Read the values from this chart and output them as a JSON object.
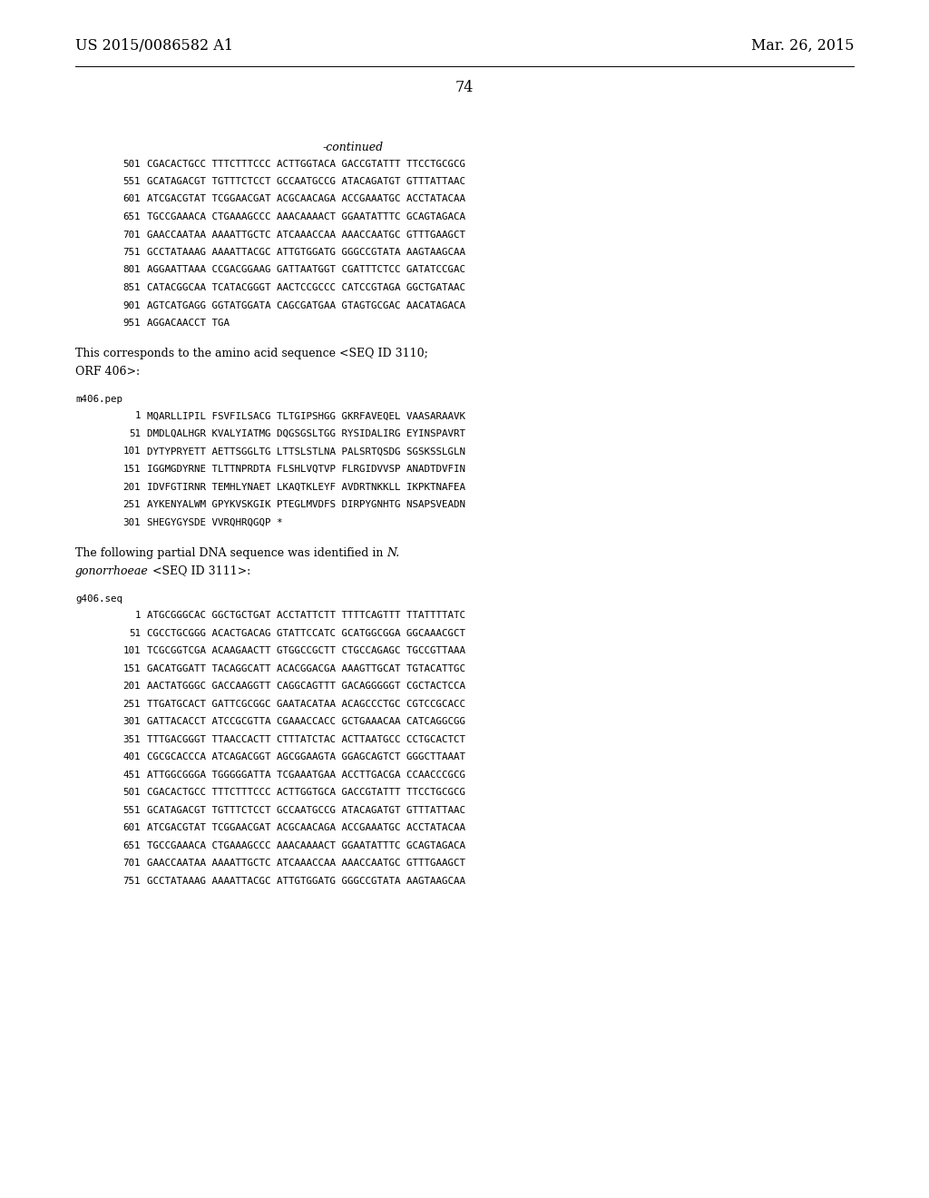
{
  "background_color": "#ffffff",
  "header_left": "US 2015/0086582 A1",
  "header_right": "Mar. 26, 2015",
  "page_number": "74",
  "font_size_header": 11.5,
  "font_size_body": 9.0,
  "font_size_mono": 7.8,
  "font_size_label": 7.8,
  "content": [
    {
      "type": "continued",
      "text": "-continued"
    },
    {
      "type": "seq",
      "num": "501",
      "text": "CGACACTGCC TTTCTTTCCC ACTTGGTACA GACCGTATTT TTCCTGCGCG"
    },
    {
      "type": "seq",
      "num": "551",
      "text": "GCATAGACGT TGTTTCTCCT GCCAATGCCG ATACAGATGT GTTTATTAAC"
    },
    {
      "type": "seq",
      "num": "601",
      "text": "ATCGACGTAT TCGGAACGAT ACGCAACAGA ACCGAAATGC ACCTATACAA"
    },
    {
      "type": "seq",
      "num": "651",
      "text": "TGCCGAAACA CTGAAAGCCC AAACAAAACT GGAATATTTC GCAGTAGACA"
    },
    {
      "type": "seq",
      "num": "701",
      "text": "GAACCAATAA AAAATTGCTC ATCAAACCAA AAACCAATGC GTTTGAAGCT"
    },
    {
      "type": "seq",
      "num": "751",
      "text": "GCCTATAAAG AAAATTACGC ATTGTGGATG GGGCCGTATA AAGTAAGCAA"
    },
    {
      "type": "seq",
      "num": "801",
      "text": "AGGAATTAAA CCGACGGAAG GATTAATGGT CGATTTCTCC GATATCCGAC"
    },
    {
      "type": "seq",
      "num": "851",
      "text": "CATACGGCAA TCATACGGGT AACTCCGCCC CATCCGTAGA GGCTGATAAC"
    },
    {
      "type": "seq",
      "num": "901",
      "text": "AGTCATGAGG GGTATGGATA CAGCGATGAA GTAGTGCGAC AACATAGACA"
    },
    {
      "type": "seq",
      "num": "951",
      "text": "AGGACAACCT TGA"
    },
    {
      "type": "blank"
    },
    {
      "type": "body",
      "text": "This corresponds to the amino acid sequence <SEQ ID 3110;"
    },
    {
      "type": "body",
      "text": "ORF 406>:"
    },
    {
      "type": "blank"
    },
    {
      "type": "label",
      "text": "m406.pep"
    },
    {
      "type": "seq_ul",
      "num": "1",
      "text": "MQARLLIPIL FSVFILSACG TLTGIPSHGG GKRFAVEQEL VAASARAAVK",
      "ul_chars": 17
    },
    {
      "type": "seq",
      "num": "51",
      "text": "DMDLQALHGR KVALYIATMG DQGSGSLTGG RYSIDALIRG EYINSPAVRT"
    },
    {
      "type": "seq",
      "num": "101",
      "text": "DYTYPRYETT AETTSGGLTG LTTSLSTLNA PALSRTQSDG SGSKSSLGLN"
    },
    {
      "type": "seq",
      "num": "151",
      "text": "IGGMGDYRNE TLTTNPRDTA FLSHLVQTVP FLRGIDVVSP ANADTDVFIN"
    },
    {
      "type": "seq",
      "num": "201",
      "text": "IDVFGTIRNR TEMHLYNAET LKAQTKLEYF AVDRTNKKLL IKPKTNAFEA"
    },
    {
      "type": "seq",
      "num": "251",
      "text": "AYKENYALWM GPYKVSKGIK PTEGLMVDFS DIRPYGNHTG NSAPSVEADN"
    },
    {
      "type": "seq",
      "num": "301",
      "text": "SHEGYGYSDE VVRQHRQGQP *"
    },
    {
      "type": "blank"
    },
    {
      "type": "body_italic_line",
      "normal1": "The following partial DNA sequence was identified in ",
      "italic": "N.",
      "normal2": ""
    },
    {
      "type": "body",
      "text": "gonorrhoeae <SEQ ID 3111>:",
      "italic_prefix": "gonorrhoeae",
      "rest": " <SEQ ID 3111>:"
    },
    {
      "type": "blank"
    },
    {
      "type": "label",
      "text": "g406.seq"
    },
    {
      "type": "seq",
      "num": "1",
      "text": "ATGCGGGCAC GGCTGCTGAT ACCTATTCTT TTTTCAGTTT TTATTTTATC"
    },
    {
      "type": "seq",
      "num": "51",
      "text": "CGCCTGCGGG ACACTGACAG GTATTCCATC GCATGGCGGA GGCAAACGCT"
    },
    {
      "type": "seq",
      "num": "101",
      "text": "TCGCGGTCGA ACAAGAACTT GTGGCCGCTT CTGCCAGAGC TGCCGTTAAA"
    },
    {
      "type": "seq",
      "num": "151",
      "text": "GACATGGATT TACAGGCATT ACACGGACGA AAAGTTGCAT TGTACATTGC"
    },
    {
      "type": "seq",
      "num": "201",
      "text": "AACTATGGGC GACCAAGGTT CAGGCAGTTT GACAGGGGGT CGCTACTCCA"
    },
    {
      "type": "seq",
      "num": "251",
      "text": "TTGATGCACT GATTCGCGGC GAATACATAA ACAGCCCTGC CGTCCGCACC"
    },
    {
      "type": "seq",
      "num": "301",
      "text": "GATTACACCT ATCCGCGTTA CGAAACCACC GCTGAAACAA CATCAGGCGG"
    },
    {
      "type": "seq",
      "num": "351",
      "text": "TTTGACGGGT TTAACCACTT CTTTATCTAC ACTTAATGCC CCTGCACTCT"
    },
    {
      "type": "seq",
      "num": "401",
      "text": "CGCGCACCCA ATCAGACGGT AGCGGAAGTA GGAGCAGTCT GGGCTTAAAT"
    },
    {
      "type": "seq",
      "num": "451",
      "text": "ATTGGCGGGA TGGGGGATTA TCGAAATGAA ACCTTGACGA CCAACCCGCG"
    },
    {
      "type": "seq",
      "num": "501",
      "text": "CGACACTGCC TTTCTTTCCC ACTTGGTGCA GACCGTATTT TTCCTGCGCG"
    },
    {
      "type": "seq",
      "num": "551",
      "text": "GCATAGACGT TGTTTCTCCT GCCAATGCCG ATACAGATGT GTTTATTAAC"
    },
    {
      "type": "seq",
      "num": "601",
      "text": "ATCGACGTAT TCGGAACGAT ACGCAACAGA ACCGAAATGC ACCTATACAA"
    },
    {
      "type": "seq",
      "num": "651",
      "text": "TGCCGAAACA CTGAAAGCCC AAACAAAACT GGAATATTTC GCAGTAGACA"
    },
    {
      "type": "seq",
      "num": "701",
      "text": "GAACCAATAA AAAATTGCTC ATCAAACCAA AAACCAATGC GTTTGAAGCT"
    },
    {
      "type": "seq",
      "num": "751",
      "text": "GCCTATAAAG AAAATTACGC ATTGTGGATG GGGCCGTATA AAGTAAGCAA"
    }
  ]
}
